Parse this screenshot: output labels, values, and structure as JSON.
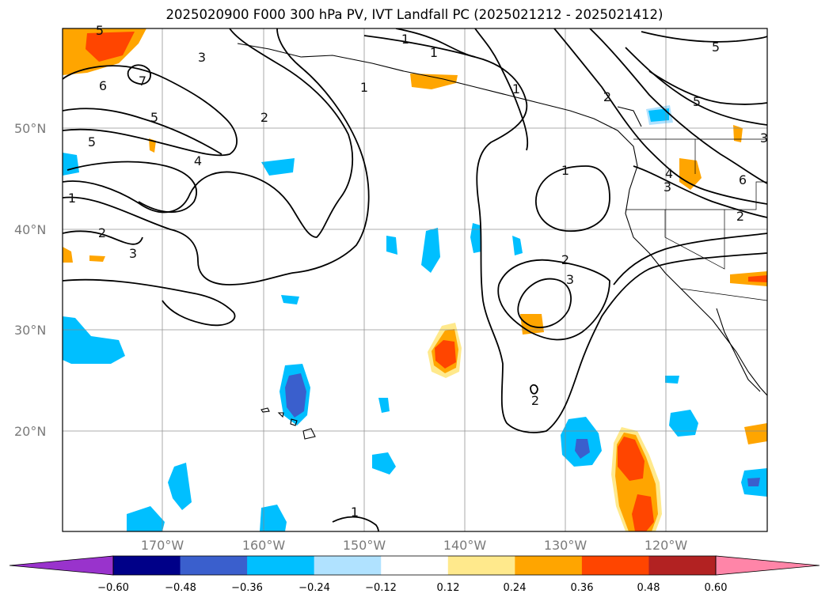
{
  "title": "2025020900 F000 300 hPa PV, IVT Landfall PC (2025021212 - 2025021412)",
  "lat_labels": [
    "50°N",
    "40°N",
    "30°N",
    "20°N"
  ],
  "lon_labels": [
    "170°W",
    "160°W",
    "150°W",
    "140°W",
    "130°W",
    "120°W"
  ],
  "contour_labels": [
    "5",
    "3",
    "6",
    "7",
    "5",
    "5",
    "4",
    "2",
    "1",
    "1",
    "1",
    "1",
    "1",
    "2",
    "1",
    "2",
    "3",
    "3",
    "5",
    "5",
    "4",
    "3",
    "6",
    "2",
    "3",
    "2",
    "1",
    "2"
  ],
  "colorbar": {
    "ticks": [
      "−0.60",
      "−0.48",
      "−0.36",
      "−0.24",
      "−0.12",
      "0.12",
      "0.24",
      "0.36",
      "0.48",
      "0.60"
    ],
    "colors": [
      "#9933cc",
      "#000088",
      "#3a5fcd",
      "#00bfff",
      "#b0e2ff",
      "#ffffff",
      "#ffe98c",
      "#ffa500",
      "#ff4500",
      "#b22222",
      "#ff85a8"
    ]
  }
}
